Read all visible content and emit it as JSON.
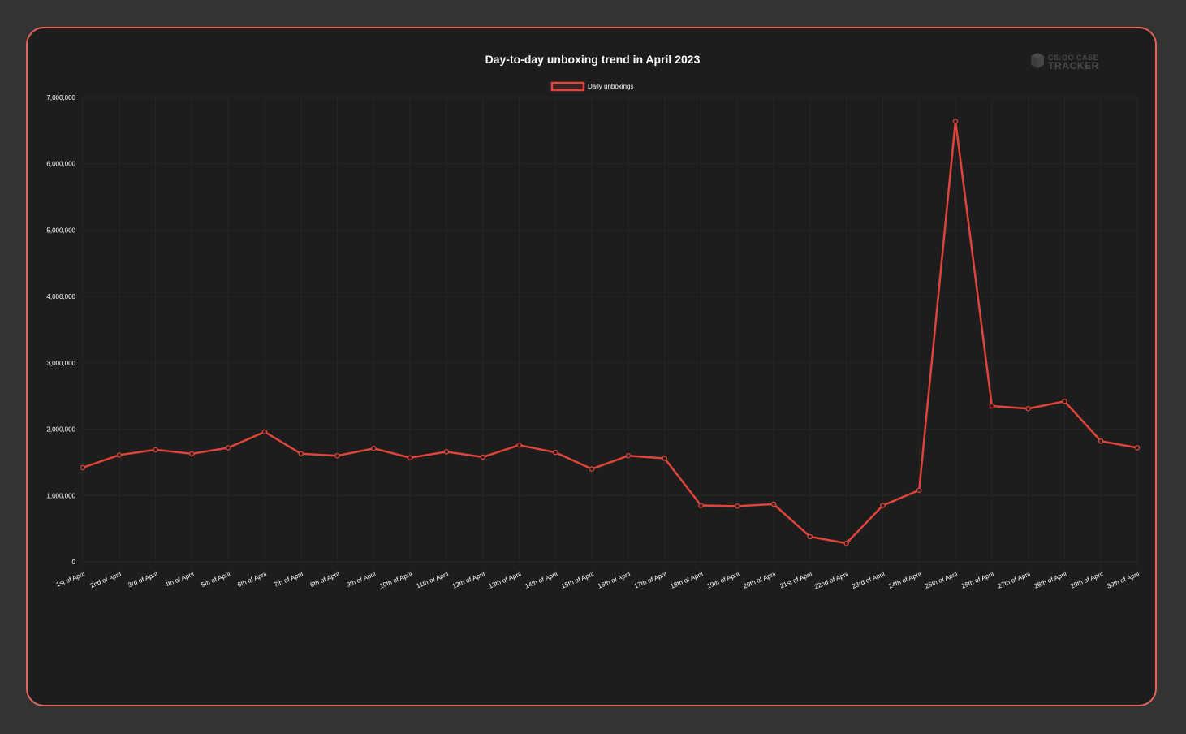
{
  "colors": {
    "accent": "#e2675a",
    "line": "#e0443a",
    "background": "#333333",
    "card": "#1d1d1d",
    "grid": "#262626",
    "text": "#ffffff",
    "logo": "#4a4a4a"
  },
  "logo": {
    "icon": "box-icon",
    "line1": "CS:GO CASE",
    "line2": "TRACKER"
  },
  "chart_data": {
    "type": "line",
    "title": "Day-to-day unboxing trend in April 2023",
    "xlabel": "",
    "ylabel": "",
    "ylim": [
      0,
      7000000
    ],
    "yticks": [
      0,
      1000000,
      2000000,
      3000000,
      4000000,
      5000000,
      6000000,
      7000000
    ],
    "ytick_labels": [
      "0",
      "1,000,000",
      "2,000,000",
      "3,000,000",
      "4,000,000",
      "5,000,000",
      "6,000,000",
      "7,000,000"
    ],
    "grid": true,
    "legend_position": "top-center",
    "categories": [
      "1st of April",
      "2nd of April",
      "3rd of April",
      "4th of April",
      "5th of April",
      "6th of April",
      "7th of April",
      "8th of April",
      "9th of April",
      "10th of April",
      "11th of April",
      "12th of April",
      "13th of April",
      "14th of April",
      "15th of April",
      "16th of April",
      "17th of April",
      "18th of April",
      "19th of April",
      "20th of April",
      "21st of April",
      "22nd of April",
      "23rd of April",
      "24th of April",
      "25th of April",
      "26th of April",
      "27th of April",
      "28th of April",
      "29th of April",
      "30th of April"
    ],
    "series": [
      {
        "name": "Daily unboxings",
        "values": [
          1420000,
          1610000,
          1690000,
          1630000,
          1720000,
          1960000,
          1630000,
          1600000,
          1710000,
          1570000,
          1660000,
          1580000,
          1760000,
          1650000,
          1400000,
          1600000,
          1560000,
          850000,
          840000,
          870000,
          380000,
          280000,
          850000,
          1080000,
          6640000,
          2350000,
          2310000,
          2420000,
          1820000,
          1720000
        ]
      }
    ]
  }
}
